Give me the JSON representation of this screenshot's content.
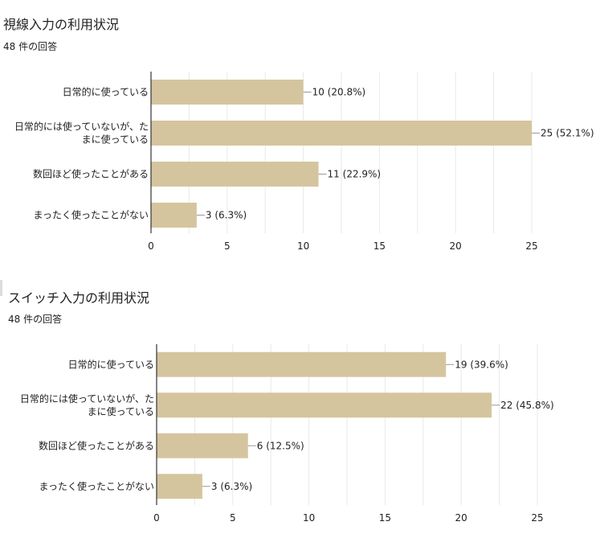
{
  "charts": [
    {
      "title": "視線入力の利用状況",
      "subtitle": "48 件の回答"
    },
    {
      "title": "スイッチ入力の利用状況",
      "subtitle": "48 件の回答"
    }
  ],
  "colors": {
    "bar": "#d5c59e",
    "axis": "#333333",
    "grid": "#e9e9e9",
    "text": "#202124"
  },
  "chart_data": [
    {
      "type": "bar",
      "orientation": "horizontal",
      "title": "視線入力の利用状況",
      "subtitle": "48 件の回答",
      "categories": [
        [
          "日常的に使っている"
        ],
        [
          "日常的には使っていないが、た",
          "まに使っている"
        ],
        [
          "数回ほど使ったことがある"
        ],
        [
          "まったく使ったことがない"
        ]
      ],
      "values": [
        10,
        25,
        11,
        3
      ],
      "data_labels": [
        "10 (20.8%)",
        "25 (52.1%)",
        "11 (22.9%)",
        "3 (6.3%)"
      ],
      "xlim": [
        0,
        25
      ],
      "xticks": [
        0,
        5,
        10,
        15,
        20,
        25
      ],
      "grid": true
    },
    {
      "type": "bar",
      "orientation": "horizontal",
      "title": "スイッチ入力の利用状況",
      "subtitle": "48 件の回答",
      "categories": [
        [
          "日常的に使っている"
        ],
        [
          "日常的には使っていないが、た",
          "まに使っている"
        ],
        [
          "数回ほど使ったことがある"
        ],
        [
          "まったく使ったことがない"
        ]
      ],
      "values": [
        19,
        22,
        6,
        3
      ],
      "data_labels": [
        "19 (39.6%)",
        "22 (45.8%)",
        "6 (12.5%)",
        "3 (6.3%)"
      ],
      "xlim": [
        0,
        25
      ],
      "xticks": [
        0,
        5,
        10,
        15,
        20,
        25
      ],
      "grid": true
    }
  ]
}
